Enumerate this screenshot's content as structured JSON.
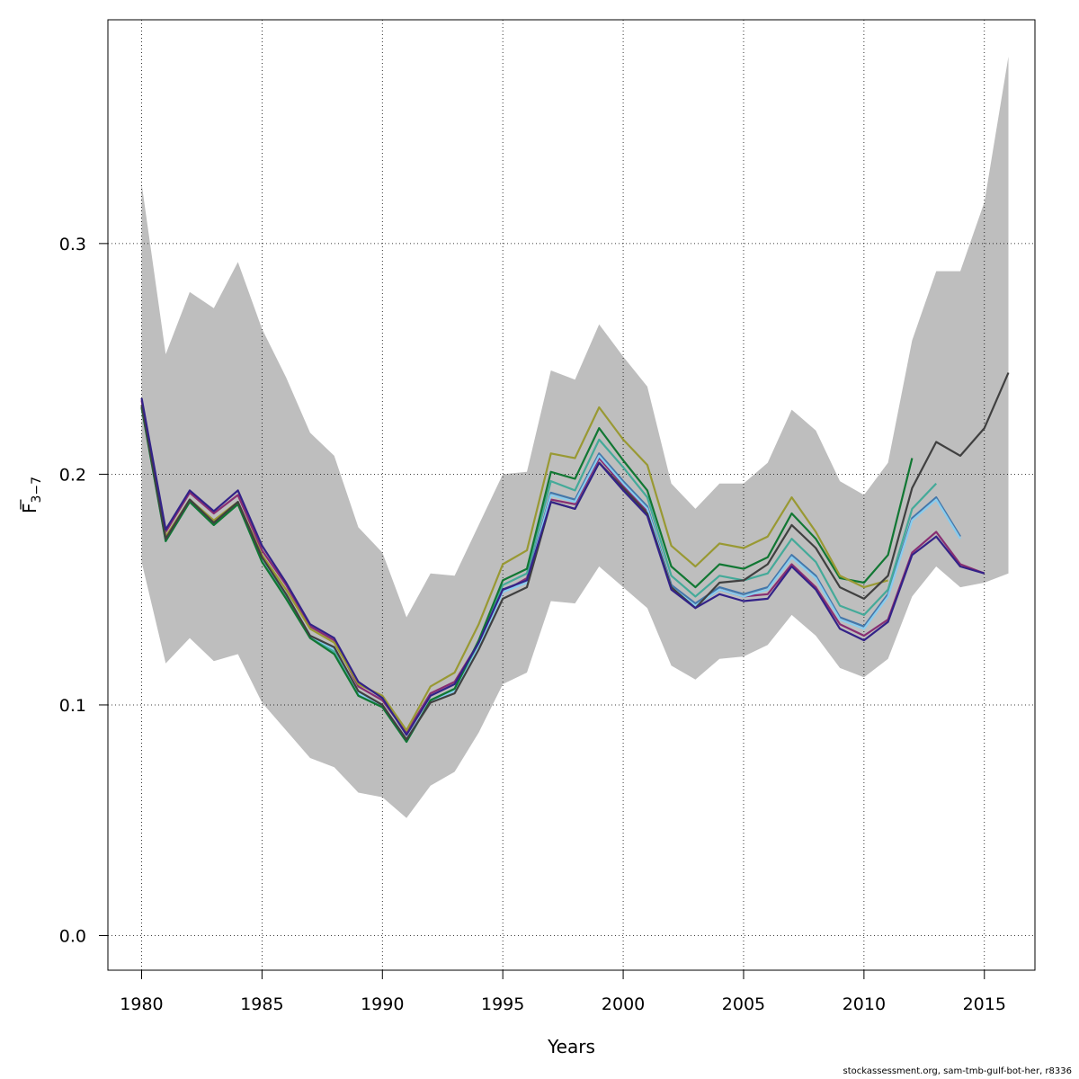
{
  "chart_data": {
    "type": "line",
    "title": "",
    "xlabel": "Years",
    "ylabel_main": "F",
    "ylabel_sub": "3−7",
    "xlim": [
      1978.6,
      2017.1
    ],
    "ylim": [
      -0.015,
      0.397
    ],
    "xticks": [
      1980,
      1985,
      1990,
      1995,
      2000,
      2005,
      2010,
      2015
    ],
    "yticks": [
      0.0,
      0.1,
      0.2,
      0.3
    ],
    "ytick_labels": [
      "0.0",
      "0.1",
      "0.2",
      "0.3"
    ],
    "grid": true,
    "band_color": "#bebebe",
    "band": {
      "x": [
        1980,
        1981,
        1982,
        1983,
        1984,
        1985,
        1986,
        1987,
        1988,
        1989,
        1990,
        1991,
        1992,
        1993,
        1994,
        1995,
        1996,
        1997,
        1998,
        1999,
        2000,
        2001,
        2002,
        2003,
        2004,
        2005,
        2006,
        2007,
        2008,
        2009,
        2010,
        2011,
        2012,
        2013,
        2014,
        2015,
        2016
      ],
      "upper": [
        0.326,
        0.252,
        0.279,
        0.272,
        0.292,
        0.263,
        0.242,
        0.218,
        0.208,
        0.177,
        0.166,
        0.138,
        0.157,
        0.156,
        0.178,
        0.2,
        0.201,
        0.245,
        0.241,
        0.265,
        0.251,
        0.238,
        0.196,
        0.185,
        0.196,
        0.196,
        0.205,
        0.228,
        0.219,
        0.197,
        0.191,
        0.205,
        0.258,
        0.288,
        0.288,
        0.318,
        0.381
      ],
      "lower": [
        0.162,
        0.118,
        0.129,
        0.119,
        0.122,
        0.101,
        0.089,
        0.077,
        0.073,
        0.062,
        0.06,
        0.051,
        0.065,
        0.071,
        0.088,
        0.109,
        0.114,
        0.145,
        0.144,
        0.16,
        0.151,
        0.142,
        0.117,
        0.111,
        0.12,
        0.121,
        0.126,
        0.139,
        0.13,
        0.116,
        0.112,
        0.12,
        0.147,
        0.16,
        0.151,
        0.153,
        0.157
      ]
    },
    "series": [
      {
        "color": "#882e72",
        "x": [
          1980,
          1981,
          1982,
          1983,
          1984,
          1985,
          1986,
          1987,
          1988,
          1989,
          1990,
          1991,
          1992,
          1993,
          1994,
          1995,
          1996,
          1997,
          1998,
          1999,
          2000,
          2001,
          2002,
          2003,
          2004,
          2005,
          2006,
          2007,
          2008,
          2009,
          2010,
          2011,
          2012,
          2013,
          2014,
          2015
        ],
        "values": [
          0.232,
          0.175,
          0.192,
          0.183,
          0.191,
          0.167,
          0.152,
          0.134,
          0.128,
          0.108,
          0.102,
          0.088,
          0.105,
          0.11,
          0.127,
          0.149,
          0.155,
          0.189,
          0.187,
          0.207,
          0.195,
          0.184,
          0.152,
          0.143,
          0.15,
          0.147,
          0.148,
          0.161,
          0.151,
          0.135,
          0.13,
          0.137,
          0.166,
          0.175,
          0.161,
          0.157
        ]
      },
      {
        "color": "#4477aa",
        "x": [
          1980,
          1981,
          1982,
          1983,
          1984,
          1985,
          1986,
          1987,
          1988,
          1989,
          1990,
          1991,
          1992,
          1993,
          1994,
          1995,
          1996,
          1997,
          1998,
          1999,
          2000,
          2001,
          2002,
          2003,
          2004,
          2005,
          2006,
          2007,
          2008,
          2009,
          2010,
          2011,
          2012,
          2013,
          2014
        ],
        "values": [
          0.229,
          0.172,
          0.189,
          0.179,
          0.188,
          0.163,
          0.148,
          0.13,
          0.124,
          0.105,
          0.1,
          0.085,
          0.102,
          0.106,
          0.125,
          0.15,
          0.154,
          0.192,
          0.189,
          0.209,
          0.197,
          0.186,
          0.152,
          0.144,
          0.151,
          0.148,
          0.151,
          0.165,
          0.156,
          0.138,
          0.134,
          0.148,
          0.181,
          0.19,
          0.173
        ]
      },
      {
        "color": "#88ccee",
        "x": [
          1980,
          1981,
          1982,
          1983,
          1984,
          1985,
          1986,
          1987,
          1988,
          1989,
          1990,
          1991,
          1992,
          1993,
          1994,
          1995,
          1996,
          1997,
          1998,
          1999,
          2000,
          2001,
          2002,
          2003,
          2004,
          2005,
          2006,
          2007,
          2008,
          2009,
          2010,
          2011,
          2012,
          2013,
          2014
        ],
        "values": [
          0.229,
          0.172,
          0.189,
          0.179,
          0.188,
          0.163,
          0.148,
          0.13,
          0.124,
          0.105,
          0.1,
          0.085,
          0.102,
          0.106,
          0.125,
          0.149,
          0.153,
          0.191,
          0.188,
          0.208,
          0.196,
          0.185,
          0.151,
          0.143,
          0.15,
          0.147,
          0.15,
          0.164,
          0.155,
          0.137,
          0.133,
          0.147,
          0.18,
          0.189,
          0.172
        ]
      },
      {
        "color": "#44aa99",
        "x": [
          1980,
          1981,
          1982,
          1983,
          1984,
          1985,
          1986,
          1987,
          1988,
          1989,
          1990,
          1991,
          1992,
          1993,
          1994,
          1995,
          1996,
          1997,
          1998,
          1999,
          2000,
          2001,
          2002,
          2003,
          2004,
          2005,
          2006,
          2007,
          2008,
          2009,
          2010,
          2011,
          2012,
          2013
        ],
        "values": [
          0.229,
          0.171,
          0.188,
          0.178,
          0.187,
          0.162,
          0.147,
          0.129,
          0.123,
          0.104,
          0.099,
          0.084,
          0.102,
          0.107,
          0.127,
          0.152,
          0.157,
          0.197,
          0.193,
          0.215,
          0.203,
          0.19,
          0.156,
          0.147,
          0.156,
          0.154,
          0.157,
          0.172,
          0.162,
          0.143,
          0.139,
          0.15,
          0.185,
          0.196
        ]
      },
      {
        "color": "#117733",
        "x": [
          1980,
          1981,
          1982,
          1983,
          1984,
          1985,
          1986,
          1987,
          1988,
          1989,
          1990,
          1991,
          1992,
          1993,
          1994,
          1995,
          1996,
          1997,
          1998,
          1999,
          2000,
          2001,
          2002,
          2003,
          2004,
          2005,
          2006,
          2007,
          2008,
          2009,
          2010,
          2011,
          2012
        ],
        "values": [
          0.229,
          0.171,
          0.188,
          0.178,
          0.187,
          0.162,
          0.146,
          0.129,
          0.122,
          0.104,
          0.099,
          0.084,
          0.102,
          0.107,
          0.128,
          0.154,
          0.159,
          0.201,
          0.198,
          0.22,
          0.206,
          0.193,
          0.16,
          0.151,
          0.161,
          0.159,
          0.164,
          0.183,
          0.172,
          0.155,
          0.153,
          0.165,
          0.207
        ]
      },
      {
        "color": "#999933",
        "x": [
          1980,
          1981,
          1982,
          1983,
          1984,
          1985,
          1986,
          1987,
          1988,
          1989,
          1990,
          1991,
          1992,
          1993,
          1994,
          1995,
          1996,
          1997,
          1998,
          1999,
          2000,
          2001,
          2002,
          2003,
          2004,
          2005,
          2006,
          2007,
          2008,
          2009,
          2010,
          2011
        ],
        "values": [
          0.23,
          0.173,
          0.189,
          0.18,
          0.188,
          0.165,
          0.15,
          0.133,
          0.127,
          0.109,
          0.104,
          0.089,
          0.108,
          0.114,
          0.135,
          0.161,
          0.167,
          0.209,
          0.207,
          0.229,
          0.215,
          0.204,
          0.169,
          0.16,
          0.17,
          0.168,
          0.173,
          0.19,
          0.175,
          0.156,
          0.151,
          0.154
        ]
      },
      {
        "color": "#404040",
        "x": [
          1980,
          1981,
          1982,
          1983,
          1984,
          1985,
          1986,
          1987,
          1988,
          1989,
          1990,
          1991,
          1992,
          1993,
          1994,
          1995,
          1996,
          1997,
          1998,
          1999,
          2000,
          2001,
          2002,
          2003,
          2004,
          2005,
          2006,
          2007,
          2008,
          2009,
          2010,
          2011,
          2012,
          2013,
          2014,
          2015,
          2016
        ],
        "values": [
          0.23,
          0.172,
          0.189,
          0.179,
          0.188,
          0.164,
          0.148,
          0.13,
          0.125,
          0.106,
          0.1,
          0.085,
          0.101,
          0.105,
          0.124,
          0.146,
          0.151,
          0.188,
          0.185,
          0.205,
          0.194,
          0.183,
          0.151,
          0.142,
          0.153,
          0.154,
          0.161,
          0.178,
          0.168,
          0.151,
          0.146,
          0.156,
          0.194,
          0.214,
          0.208,
          0.22,
          0.244
        ]
      },
      {
        "color": "#332288",
        "x": [
          1980,
          1981,
          1982,
          1983,
          1984,
          1985,
          1986,
          1987,
          1988,
          1989,
          1990,
          1991,
          1992,
          1993,
          1994,
          1995,
          1996,
          1997,
          1998,
          1999,
          2000,
          2001,
          2002,
          2003,
          2004,
          2005,
          2006,
          2007,
          2008,
          2009,
          2010,
          2011,
          2012,
          2013,
          2014,
          2015
        ],
        "values": [
          0.233,
          0.176,
          0.193,
          0.184,
          0.193,
          0.169,
          0.153,
          0.135,
          0.129,
          0.11,
          0.103,
          0.087,
          0.104,
          0.109,
          0.127,
          0.15,
          0.154,
          0.188,
          0.185,
          0.205,
          0.193,
          0.182,
          0.15,
          0.142,
          0.148,
          0.145,
          0.146,
          0.16,
          0.15,
          0.133,
          0.128,
          0.136,
          0.165,
          0.173,
          0.16,
          0.157
        ]
      }
    ]
  },
  "footer": {
    "note": "stockassessment.org, sam-tmb-gulf-bot-her, r8336"
  }
}
